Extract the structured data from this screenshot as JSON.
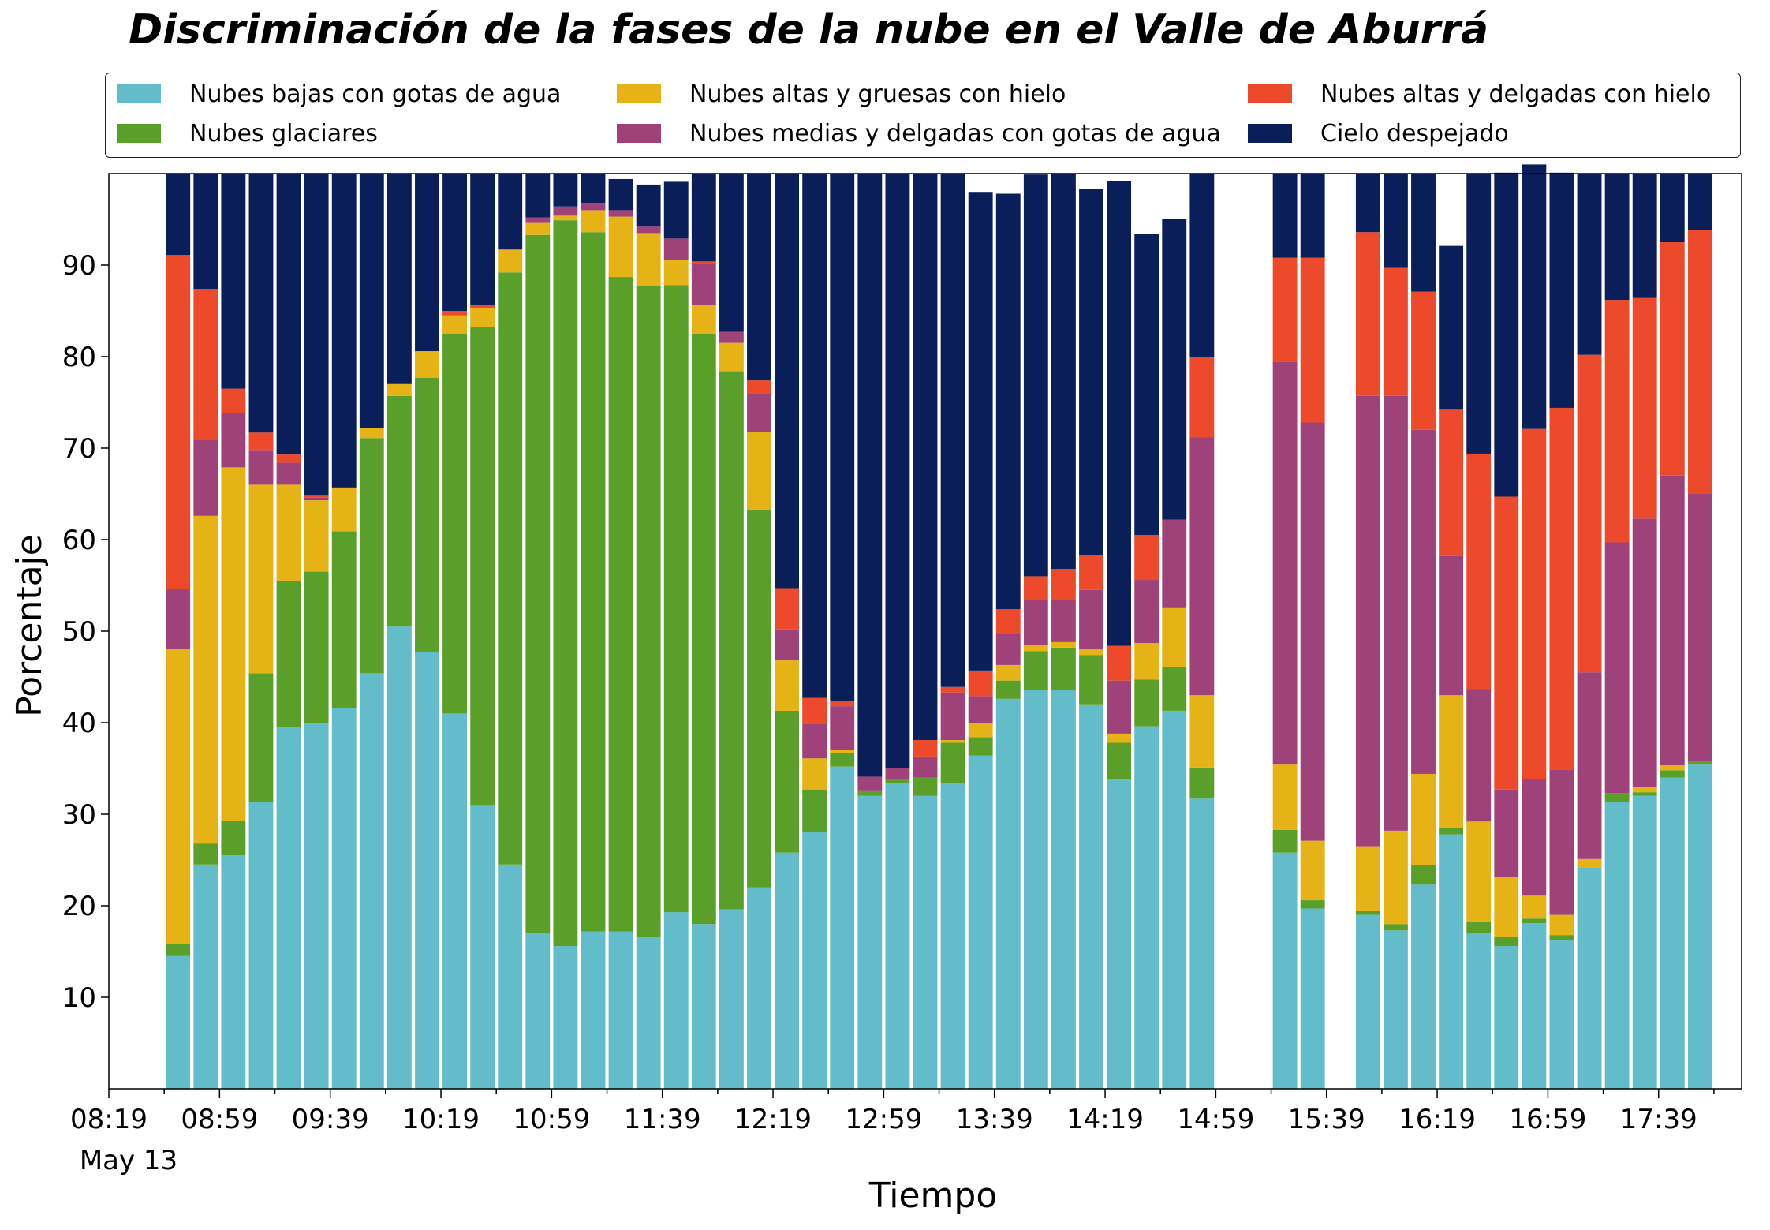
{
  "chart_data": {
    "type": "bar",
    "stacked": true,
    "title": "Discriminación de la fases de la nube en el Valle de Aburrá",
    "xlabel": "Tiempo",
    "ylabel": "Porcentaje",
    "ylim": [
      0,
      100
    ],
    "y_ticks": [
      10,
      20,
      30,
      40,
      50,
      60,
      70,
      80,
      90
    ],
    "x_tick_labels": [
      "08:19",
      "08:59",
      "09:39",
      "10:19",
      "10:59",
      "11:39",
      "12:19",
      "12:59",
      "13:39",
      "14:19",
      "14:59",
      "15:39",
      "16:19",
      "16:59",
      "17:39"
    ],
    "x_date_label": "May 13",
    "grid": false,
    "legend_position": "top",
    "slots_comment_free": true,
    "bar_slots": [
      2,
      3,
      4,
      5,
      6,
      7,
      8,
      9,
      10,
      11,
      12,
      13,
      14,
      15,
      16,
      17,
      18,
      19,
      20,
      21,
      22,
      23,
      24,
      25,
      26,
      27,
      28,
      29,
      30,
      31,
      32,
      33,
      34,
      35,
      36,
      37,
      38,
      39,
      42,
      43,
      45,
      46,
      47,
      48,
      49,
      50,
      51,
      52,
      53,
      54,
      55,
      56,
      57
    ],
    "series": [
      {
        "name": "Nubes bajas con gotas de agua",
        "color": "#63bcc9",
        "values": [
          14.5,
          24.5,
          25.5,
          31.3,
          39.5,
          40,
          41.6,
          45.4,
          50.5,
          47.7,
          41,
          31,
          24.5,
          17,
          15.6,
          17.2,
          17.2,
          16.6,
          19.3,
          18,
          19.6,
          22,
          25.8,
          28.1,
          35.2,
          32,
          33.4,
          32,
          33.4,
          36.4,
          42.6,
          43.6,
          43.6,
          42,
          33.8,
          39.6,
          41.3,
          31.7,
          25.8,
          19.7,
          19,
          17.3,
          22.3,
          27.8,
          17,
          15.6,
          18.1,
          16.2,
          24.2,
          31.3,
          32,
          34,
          35.5
        ]
      },
      {
        "name": "Nubes glaciares",
        "color": "#5b9f2b",
        "values": [
          1.3,
          2.3,
          3.8,
          14.1,
          16,
          16.5,
          19.3,
          25.7,
          25.2,
          30,
          41.5,
          52.2,
          64.7,
          76.3,
          79.3,
          76.4,
          71.5,
          71.1,
          68.5,
          64.5,
          58.8,
          41.3,
          15.5,
          4.6,
          1.5,
          0.6,
          0.4,
          2,
          4.4,
          2,
          2,
          4.2,
          4.6,
          5.4,
          4,
          5.1,
          4.8,
          3.4,
          2.5,
          0.9,
          0.4,
          0.7,
          2.1,
          0.7,
          1.2,
          1,
          0.5,
          0.6,
          0,
          1,
          0.4,
          0.8,
          0.3
        ]
      },
      {
        "name": "Nubes altas y gruesas con hielo",
        "color": "#e6b316",
        "values": [
          32.3,
          35.8,
          38.6,
          20.6,
          10.5,
          7.8,
          4.8,
          1.1,
          1.3,
          2.9,
          2,
          2.1,
          2.5,
          1.3,
          0.5,
          2.4,
          6.6,
          5.8,
          2.8,
          3.1,
          3.1,
          8.5,
          5.5,
          3.4,
          0.3,
          0,
          0,
          0,
          0.3,
          1.5,
          1.7,
          0.7,
          0.6,
          0.6,
          1,
          4,
          6.5,
          7.9,
          7.2,
          6.5,
          7.1,
          10.2,
          10,
          14.5,
          11,
          6.5,
          2.5,
          2.2,
          0.9,
          0,
          0.6,
          0.6,
          0
        ]
      },
      {
        "name": "Nubes medias y delgadas con gotas de agua",
        "color": "#a0427a",
        "values": [
          6.5,
          8.3,
          5.9,
          3.8,
          2.4,
          0.3,
          0,
          0,
          0,
          0,
          0,
          0,
          0,
          0.6,
          1,
          0.8,
          0.7,
          0.7,
          2.3,
          4.5,
          1.2,
          4.2,
          3.4,
          3.8,
          4.8,
          1.5,
          1.2,
          2.3,
          5.2,
          3,
          3.4,
          5,
          4.7,
          6.5,
          5.8,
          6.9,
          9.6,
          28.2,
          43.9,
          45.7,
          49.2,
          47.5,
          37.6,
          15.2,
          14.5,
          9.6,
          12.7,
          15.9,
          20.4,
          27.4,
          29.3,
          31.6,
          29.2
        ]
      },
      {
        "name": "Nubes altas y delgadas con hielo",
        "color": "#ec4a2a",
        "values": [
          36.5,
          16.5,
          2.7,
          1.9,
          0.9,
          0.2,
          0,
          0,
          0,
          0,
          0.5,
          0.3,
          0,
          0,
          0,
          0,
          0,
          0,
          0,
          0.3,
          0,
          1.4,
          4.5,
          2.8,
          0.6,
          0,
          0,
          1.8,
          0.6,
          2.8,
          2.7,
          2.5,
          3.3,
          3.8,
          3.8,
          4.9,
          0,
          8.7,
          11.4,
          18,
          17.9,
          14,
          15.1,
          16,
          25.7,
          32,
          38.3,
          39.5,
          34.7,
          26.5,
          24.1,
          25.5,
          28.8
        ]
      },
      {
        "name": "Cielo despejado",
        "color": "#0a1e5a",
        "values": [
          8.9,
          12.6,
          23.5,
          28.3,
          30.7,
          35.2,
          34.3,
          27.8,
          23,
          19.4,
          15,
          14.4,
          8.3,
          4.8,
          3.6,
          3.2,
          3.4,
          4.6,
          6.2,
          9.6,
          17.3,
          22.6,
          45.3,
          57.3,
          57.6,
          65.9,
          65,
          61.9,
          56.1,
          52.3,
          45.4,
          43.9,
          43.2,
          40,
          50.8,
          32.9,
          32.8,
          20.1,
          9.2,
          9.2,
          6.4,
          10.3,
          12.9,
          17.9,
          30.6,
          35.4,
          28.9,
          25.7,
          19.8,
          13.8,
          13.6,
          7.5,
          6.2
        ]
      }
    ]
  }
}
